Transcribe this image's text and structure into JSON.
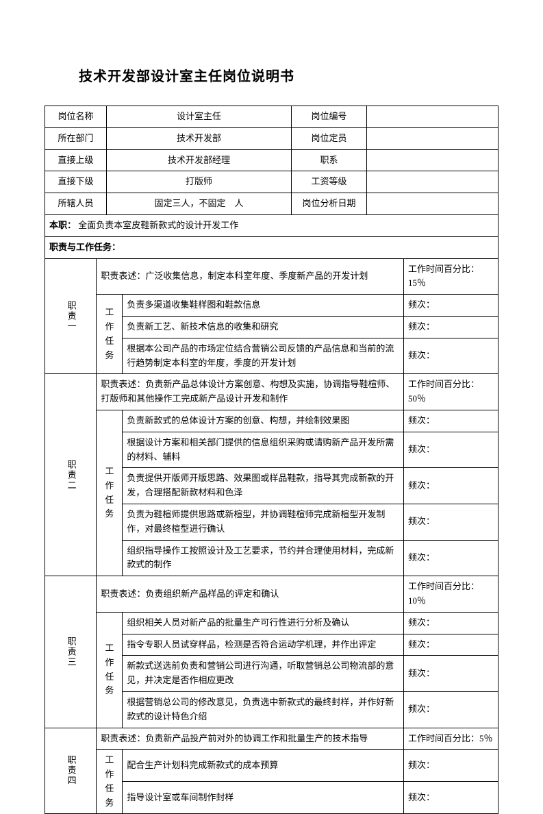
{
  "title": "技术开发部设计室主任岗位说明书",
  "header": {
    "rows": [
      {
        "l1": "岗位名称",
        "v1": "设计室主任",
        "l2": "岗位编号",
        "v2": ""
      },
      {
        "l1": "所在部门",
        "v1": "技术开发部",
        "l2": "岗位定员",
        "v2": ""
      },
      {
        "l1": "直接上级",
        "v1": "技术开发部经理",
        "l2": "职系",
        "v2": ""
      },
      {
        "l1": "直接下级",
        "v1": "打版师",
        "l2": "工资等级",
        "v2": ""
      },
      {
        "l1": "所辖人员",
        "v1": "固定三人，不固定　人",
        "l2": "岗位分析日期",
        "v2": ""
      }
    ]
  },
  "main_job": {
    "label": "本职：",
    "text": "全面负责本室皮鞋新款式的设计开发工作"
  },
  "duties_header": "职责与工作任务：",
  "task_label": "工作任务",
  "freq_label": "频次：",
  "duties": [
    {
      "name": "职责一",
      "desc": "职责表述：广泛收集信息，制定本科室年度、季度新产品的开发计划",
      "time": "工作时间百分比：15％",
      "tasks": [
        "负责多渠道收集鞋样图和鞋款信息",
        "负责新工艺、新技术信息的收集和研究",
        "根据本公司产品的市场定位结合营销公司反馈的产品信息和当前的流行趋势制定本科室的年度，季度的开发计划"
      ]
    },
    {
      "name": "职责二",
      "desc": "职责表述：负责新产品总体设计方案创意、构想及实施，协调指导鞋楦师、打版师和其他操作工完成新产品设计开发和制作",
      "time": "工作时间百分比：50％",
      "tasks": [
        "负责新款式的总体设计方案的创意、构想，并绘制效果图",
        "根据设计方案和相关部门提供的信息组织采购或请购新产品开发所需的材料、辅料",
        "负责提供开版师开版思路、效果图或样品鞋款，指导其完成新款的开发，合理搭配新款材料和色泽",
        "负责为鞋楦师提供思路或新楦型，并协调鞋楦师完成新楦型开发制作，对最终楦型进行确认",
        "组织指导操作工按照设计及工艺要求，节约并合理使用材料，完成新款式的制作"
      ]
    },
    {
      "name": "职责三",
      "desc": "职责表述：负责组织新产品样品的评定和确认",
      "time": "工作时间百分比：10％",
      "tasks": [
        "组织相关人员对新产品的批量生产可行性进行分析及确认",
        "指令专职人员试穿样品，检测是否符合运动学机理，并作出评定",
        "新款式送选前负责和营销公司进行沟通，听取营销总公司物流部的意见，并决定是否作相应更改",
        "根据营销总公司的修改意见，负责选中新款式的最终封样，并作好新款式的设计特色介绍"
      ]
    },
    {
      "name": "职责四",
      "desc": "职责表述：负责新产品投产前对外的协调工作和批量生产的技术指导",
      "time": "工作时间百分比：5％",
      "tasks": [
        "配合生产计划科完成新款式的成本预算",
        "指导设计室或车间制作封样"
      ]
    }
  ]
}
